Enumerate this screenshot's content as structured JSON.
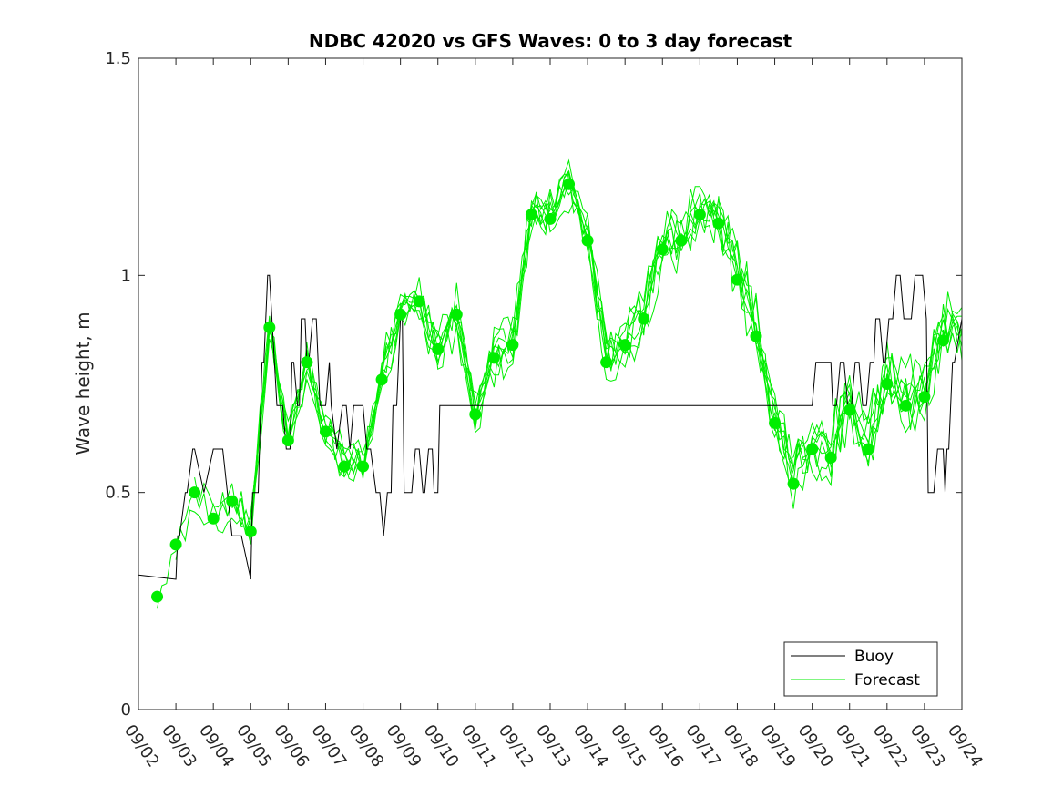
{
  "chart_data": {
    "type": "line",
    "title": "NDBC 42020 vs GFS Waves: 0 to 3 day forecast",
    "xlabel": "",
    "ylabel": "Wave height, m",
    "xlim": [
      0,
      22
    ],
    "ylim": [
      0,
      1.5
    ],
    "yticks": [
      0,
      0.5,
      1,
      1.5
    ],
    "ytick_labels": [
      "0",
      "0.5",
      "1",
      "1.5"
    ],
    "xtick_labels": [
      "09/02",
      "09/03",
      "09/04",
      "09/05",
      "09/06",
      "09/07",
      "09/08",
      "09/09",
      "09/10",
      "09/11",
      "09/12",
      "09/13",
      "09/14",
      "09/15",
      "09/16",
      "09/17",
      "09/18",
      "09/19",
      "09/20",
      "09/21",
      "09/22",
      "09/23",
      "09/24"
    ],
    "legend": {
      "position": "bottom-right",
      "entries": [
        "Buoy",
        "Forecast"
      ]
    },
    "colors": {
      "buoy": "#000000",
      "forecast": "#00ee00"
    },
    "series": [
      {
        "name": "Buoy",
        "x": [
          0,
          1,
          1.05,
          1.1,
          1.25,
          1.3,
          1.45,
          1.5,
          1.75,
          2,
          2.1,
          2.25,
          2.5,
          2.75,
          3,
          3.05,
          3.2,
          3.3,
          3.35,
          3.45,
          3.5,
          3.7,
          3.85,
          3.95,
          4.05,
          4.1,
          4.15,
          4.25,
          4.3,
          4.35,
          4.45,
          4.5,
          4.55,
          4.65,
          4.75,
          4.85,
          5,
          5.1,
          5.15,
          5.3,
          5.45,
          5.55,
          5.65,
          5.75,
          5.85,
          6,
          6.1,
          6.2,
          6.35,
          6.45,
          6.55,
          6.65,
          6.75,
          6.8,
          6.9,
          7,
          7.05,
          7.1,
          7.15,
          7.2,
          7.3,
          7.4,
          7.5,
          7.6,
          7.65,
          7.75,
          7.85,
          7.9,
          8,
          8.05,
          18,
          18.1,
          18.4,
          18.5,
          18.55,
          18.65,
          18.75,
          18.85,
          18.95,
          19.05,
          19.15,
          19.25,
          19.35,
          19.45,
          19.55,
          19.65,
          19.7,
          19.8,
          19.9,
          19.95,
          20.05,
          20.15,
          20.25,
          20.35,
          20.45,
          20.55,
          20.65,
          20.75,
          20.85,
          20.95,
          21.05,
          21.1,
          21.15,
          21.25,
          21.35,
          21.45,
          21.5,
          21.55,
          21.6,
          21.65,
          21.75,
          21.8,
          22
        ],
        "y": [
          0.31,
          0.3,
          0.4,
          0.4,
          0.5,
          0.5,
          0.6,
          0.6,
          0.5,
          0.6,
          0.6,
          0.6,
          0.4,
          0.4,
          0.3,
          0.5,
          0.5,
          0.8,
          0.8,
          1.0,
          1.0,
          0.7,
          0.7,
          0.6,
          0.6,
          0.8,
          0.8,
          0.7,
          0.7,
          0.9,
          0.9,
          0.8,
          0.8,
          0.9,
          0.9,
          0.7,
          0.7,
          0.8,
          0.7,
          0.6,
          0.7,
          0.7,
          0.6,
          0.7,
          0.7,
          0.7,
          0.6,
          0.6,
          0.5,
          0.5,
          0.4,
          0.5,
          0.5,
          0.7,
          0.7,
          0.9,
          0.9,
          0.5,
          0.5,
          0.5,
          0.5,
          0.6,
          0.6,
          0.5,
          0.5,
          0.6,
          0.6,
          0.5,
          0.5,
          0.7,
          0.7,
          0.8,
          0.8,
          0.8,
          0.7,
          0.7,
          0.8,
          0.8,
          0.7,
          0.7,
          0.8,
          0.8,
          0.7,
          0.7,
          0.8,
          0.8,
          0.9,
          0.9,
          0.8,
          0.8,
          0.9,
          0.9,
          1.0,
          1.0,
          0.9,
          0.9,
          0.9,
          1.0,
          1.0,
          1.0,
          0.9,
          0.5,
          0.5,
          0.5,
          0.6,
          0.6,
          0.6,
          0.5,
          0.6,
          0.6,
          0.8,
          0.8,
          0.9
        ]
      }
    ],
    "forecast_points": {
      "x": [
        0.5,
        1,
        1.5,
        2,
        2.5,
        3,
        3.5,
        4,
        4.5,
        5,
        5.5,
        6,
        6.5,
        7,
        7.5,
        8,
        8.5,
        9,
        9.5,
        10,
        10.5,
        11,
        11.5,
        12,
        12.5,
        13,
        13.5,
        14,
        14.5,
        15,
        15.5,
        16,
        16.5,
        17,
        17.5,
        18,
        18.5,
        19,
        19.5,
        20,
        20.5,
        21,
        21.5
      ],
      "y": [
        0.26,
        0.38,
        0.5,
        0.44,
        0.48,
        0.41,
        0.88,
        0.62,
        0.8,
        0.64,
        0.56,
        0.56,
        0.76,
        0.91,
        0.94,
        0.83,
        0.91,
        0.68,
        0.81,
        0.84,
        1.14,
        1.13,
        1.21,
        1.08,
        0.8,
        0.84,
        0.9,
        1.06,
        1.08,
        1.14,
        1.12,
        0.99,
        0.86,
        0.66,
        0.52,
        0.6,
        0.58,
        0.69,
        0.6,
        0.75,
        0.7,
        0.72,
        0.85
      ]
    }
  }
}
